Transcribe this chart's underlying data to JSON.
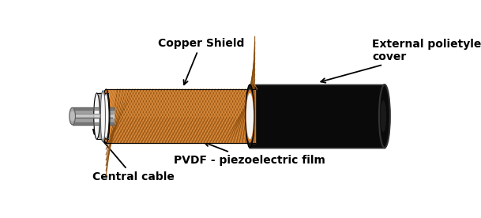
{
  "labels": {
    "copper_shield": "Copper Shield",
    "external_cover": "External polietylene\ncover",
    "pvdf_film": "PVDF - piezoelectric film",
    "central_cable": "Central cable"
  },
  "colors": {
    "black": "#000000",
    "white": "#ffffff",
    "copper_orange": "#CB7B2E",
    "copper_light": "#E8A050",
    "copper_dark": "#8B4E10",
    "copper_mid": "#B86820",
    "silver_light": "#D0D0D0",
    "silver_mid": "#A0A0A0",
    "silver_dark": "#606060",
    "dark_cover": "#0A0A0A",
    "off_white": "#F5F5F5",
    "coil_gray": "#BBBBBB"
  },
  "font_size": 10,
  "font_weight": "bold"
}
